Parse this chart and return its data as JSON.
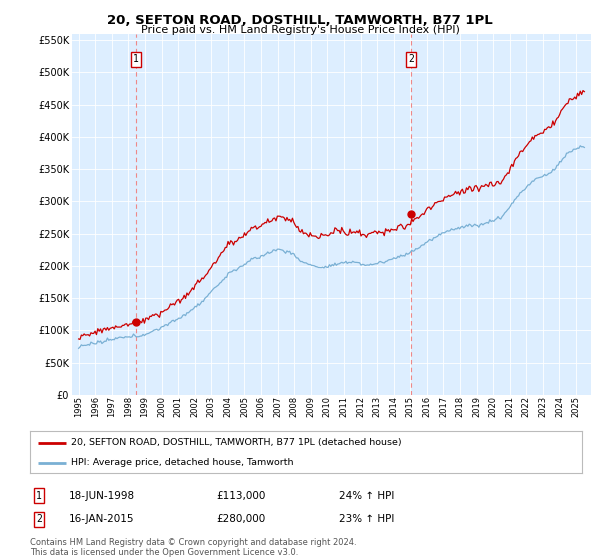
{
  "title": "20, SEFTON ROAD, DOSTHILL, TAMWORTH, B77 1PL",
  "subtitle": "Price paid vs. HM Land Registry's House Price Index (HPI)",
  "background_color": "#ffffff",
  "plot_bg_color": "#ddeeff",
  "ylim": [
    0,
    560000
  ],
  "yticks": [
    0,
    50000,
    100000,
    150000,
    200000,
    250000,
    300000,
    350000,
    400000,
    450000,
    500000,
    550000
  ],
  "ytick_labels": [
    "£0",
    "£50K",
    "£100K",
    "£150K",
    "£200K",
    "£250K",
    "£300K",
    "£350K",
    "£400K",
    "£450K",
    "£500K",
    "£550K"
  ],
  "sale1_date": 1998.46,
  "sale1_price": 113000,
  "sale2_date": 2015.04,
  "sale2_price": 280000,
  "legend_label_red": "20, SEFTON ROAD, DOSTHILL, TAMWORTH, B77 1PL (detached house)",
  "legend_label_blue": "HPI: Average price, detached house, Tamworth",
  "note1_date": "18-JUN-1998",
  "note1_price": "£113,000",
  "note1_hpi": "24% ↑ HPI",
  "note2_date": "16-JAN-2015",
  "note2_price": "£280,000",
  "note2_hpi": "23% ↑ HPI",
  "footer": "Contains HM Land Registry data © Crown copyright and database right 2024.\nThis data is licensed under the Open Government Licence v3.0.",
  "red_color": "#cc0000",
  "blue_color": "#7ab0d4",
  "dashed_red": "#ee8888"
}
